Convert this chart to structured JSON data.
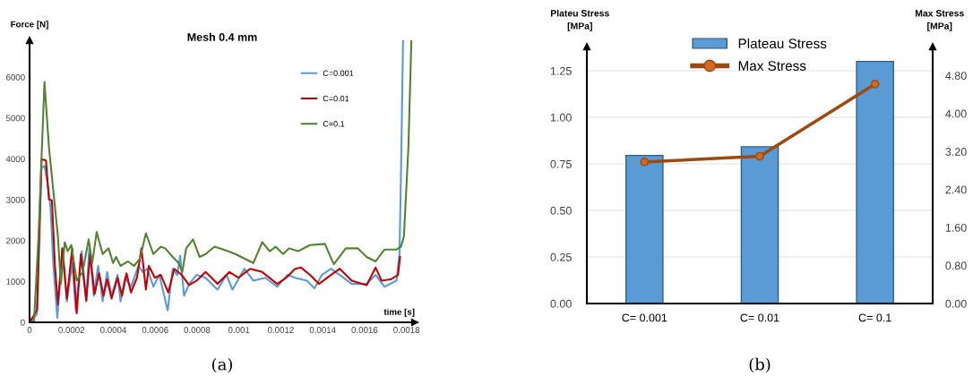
{
  "chart_data": [
    {
      "type": "line",
      "title": "Mesh 0.4 mm",
      "xlabel": "time [s]",
      "ylabel": "Force [N]",
      "annotations": [
        "(a)"
      ],
      "xlim": [
        0,
        0.00184
      ],
      "ylim": [
        0,
        6900
      ],
      "xticks": [
        0,
        0.0002,
        0.0004,
        0.0006,
        0.0008,
        0.001,
        0.0012,
        0.0014,
        0.0016,
        0.0018
      ],
      "yticks": [
        0,
        1000,
        2000,
        3000,
        4000,
        5000,
        6000
      ],
      "grid": false,
      "legend": "top right",
      "marker": "none",
      "line_style": "solid",
      "series": [
        {
          "name": "C=0.001",
          "color": "#5b9bd5",
          "x": [
            0,
            3.56e-05,
            5.7e-05,
            7.12e-05,
            8.55e-05,
            9.97e-05,
            0.000114,
            0.0001325,
            0.0001567,
            0.0001781,
            0.0002037,
            0.0002208,
            0.0002493,
            0.0002707,
            0.0002849,
            0.0003063,
            0.0003276,
            0.000349,
            0.0003704,
            0.0003917,
            0.0004202,
            0.0004345,
            0.0004558,
            0.0004843,
            0.0005199,
            0.0005413,
            0.0005627,
            0.0005912,
            0.0006197,
            0.0006595,
            0.0006838,
            0.0007051,
            0.0007194,
            0.0007379,
            0.0007621,
            0.0007977,
            0.0008406,
            0.0008691,
            0.0008976,
            0.0009403,
            0.0009688,
            0.0010258,
            0.0010685,
            0.0011255,
            0.0011825,
            0.0012324,
            0.001268,
            0.001325,
            0.0013606,
            0.0013962,
            0.001439,
            0.0014817,
            0.0015387,
            0.0016099,
            0.0016526,
            0.0016954,
            0.0017524,
            0.0017666,
            0.0017737,
            0.0017837
          ],
          "values": [
            0,
            200,
            3770,
            3830,
            3410,
            2830,
            1380,
            110,
            1810,
            510,
            1450,
            290,
            1740,
            510,
            1810,
            650,
            1380,
            510,
            1230,
            650,
            1160,
            510,
            1090,
            870,
            1380,
            1230,
            1310,
            870,
            1160,
            290,
            1310,
            1160,
            1630,
            650,
            940,
            1160,
            1090,
            940,
            800,
            1160,
            800,
            1310,
            1020,
            1090,
            870,
            1160,
            1090,
            1020,
            830,
            1160,
            1310,
            1160,
            940,
            940,
            1160,
            870,
            1020,
            1670,
            3560,
            6900
          ]
        },
        {
          "name": "C=0.01",
          "color": "#c00000",
          "x": [
            0,
            3.56e-05,
            5.7e-05,
            7.83e-05,
            9.26e-05,
            0.0001068,
            0.0001211,
            0.0001353,
            0.0001567,
            0.0001781,
            0.0002037,
            0.0002251,
            0.000245,
            0.0002707,
            0.0002892,
            0.0003105,
            0.0003319,
            0.0003533,
            0.0003704,
            0.0003917,
            0.0004202,
            0.0004416,
            0.000463,
            0.0004843,
            0.0005128,
            0.0005342,
            0.0005556,
            0.0005698,
            0.0005983,
            0.0006268,
            0.0006624,
            0.0006909,
            0.0007265,
            0.0007621,
            0.0007977,
            0.0008406,
            0.0008691,
            0.0008976,
            0.0009545,
            0.0009973,
            0.0010543,
            0.0011113,
            0.0011825,
            0.0012253,
            0.001268,
            0.0012965,
            0.0013392,
            0.001382,
            0.001439,
            0.0014817,
            0.0015387,
            0.0016099,
            0.0016526,
            0.0016811,
            0.0017239,
            0.0017595,
            0.0017694
          ],
          "values": [
            0,
            300,
            3990,
            3960,
            3010,
            2980,
            1380,
            440,
            1810,
            580,
            1810,
            220,
            1670,
            540,
            1670,
            690,
            1200,
            650,
            1050,
            580,
            1090,
            650,
            1200,
            730,
            1090,
            1810,
            800,
            1380,
            1090,
            1160,
            730,
            1310,
            1160,
            910,
            1020,
            1230,
            1090,
            940,
            1230,
            1090,
            1310,
            1230,
            940,
            1090,
            1310,
            1340,
            1160,
            940,
            1160,
            1310,
            1020,
            910,
            1340,
            1020,
            1050,
            1160,
            1600
          ]
        },
        {
          "name": "C=0.1",
          "color": "#548235",
          "x": [
            0,
            2.14e-05,
            4.27e-05,
            7.12e-05,
            9.26e-05,
            0.0001211,
            0.0001353,
            0.0001496,
            0.0001681,
            0.0001823,
            0.0001994,
            0.0002251,
            0.0002536,
            0.0002821,
            0.0002991,
            0.0003205,
            0.000349,
            0.0003775,
            0.0003989,
            0.0004131,
            0.0004345,
            0.0004701,
            0.0004986,
            0.0005271,
            0.0005556,
            0.0005912,
            0.0006268,
            0.0006481,
            0.0006838,
            0.0007123,
            0.0007293,
            0.0007479,
            0.0007806,
            0.0008119,
            0.0008406,
            0.0008833,
            0.0009261,
            0.000983,
            0.0010258,
            0.0010685,
            0.0011113,
            0.0011469,
            0.0011754,
            0.001211,
            0.0012395,
            0.0012823,
            0.0013392,
            0.0014105,
            0.0014532,
            0.0015102,
            0.0015672,
            0.0016099,
            0.0016526,
            0.0016954,
            0.0017524,
            0.0017737,
            0.0017879,
            0.0018093,
            0.0018236
          ],
          "values": [
            0,
            40,
            2100,
            5880,
            4280,
            2830,
            2100,
            940,
            1960,
            1740,
            1890,
            1020,
            1230,
            2030,
            1450,
            2210,
            1670,
            1810,
            1450,
            1600,
            1380,
            1490,
            1380,
            1560,
            2180,
            1670,
            1850,
            1810,
            1600,
            1450,
            1230,
            1810,
            2030,
            1600,
            1670,
            1850,
            1780,
            1670,
            1560,
            1450,
            1960,
            1740,
            1850,
            1670,
            1810,
            1740,
            1890,
            1920,
            1420,
            1810,
            1810,
            1600,
            1490,
            1780,
            1780,
            1850,
            2100,
            4280,
            6900
          ]
        }
      ]
    },
    {
      "type": "bar",
      "ylabel": "Plateu Stress\n[MPa]",
      "y2label": "Max Stress\n[MPa]",
      "annotations": [
        "(b)"
      ],
      "categories": [
        "C= 0.001",
        "C= 0.01",
        "C= 0.1"
      ],
      "ylim": [
        0,
        1.38
      ],
      "yticks": [
        {
          "value": 0,
          "label": "0.00"
        },
        {
          "value": 0.25,
          "label": "0.25"
        },
        {
          "value": 0.5,
          "label": "0.50"
        },
        {
          "value": 0.75,
          "label": "0.75"
        },
        {
          "value": 1.0,
          "label": "1.00"
        },
        {
          "value": 1.25,
          "label": "1.25"
        }
      ],
      "y2lim": [
        0,
        5.41
      ],
      "y2ticks": [
        {
          "value": 0,
          "label": "0.00"
        },
        {
          "value": 0.8,
          "label": "0.80"
        },
        {
          "value": 1.6,
          "label": "1.60"
        },
        {
          "value": 2.4,
          "label": "2.40"
        },
        {
          "value": 3.2,
          "label": "3.20"
        },
        {
          "value": 4.0,
          "label": "4.00"
        },
        {
          "value": 4.8,
          "label": "4.80"
        }
      ],
      "grid": "y",
      "legend": "top",
      "marker": "circle",
      "series": [
        {
          "name": "Plateau Stress",
          "type": "bar",
          "color": "#5b9bd5",
          "values": [
            0.795,
            0.842,
            1.3
          ]
        },
        {
          "name": "Max Stress",
          "type": "line",
          "axis": "y2",
          "color": "#9c4a12",
          "values": [
            2.98,
            3.1,
            4.62
          ]
        }
      ]
    }
  ]
}
